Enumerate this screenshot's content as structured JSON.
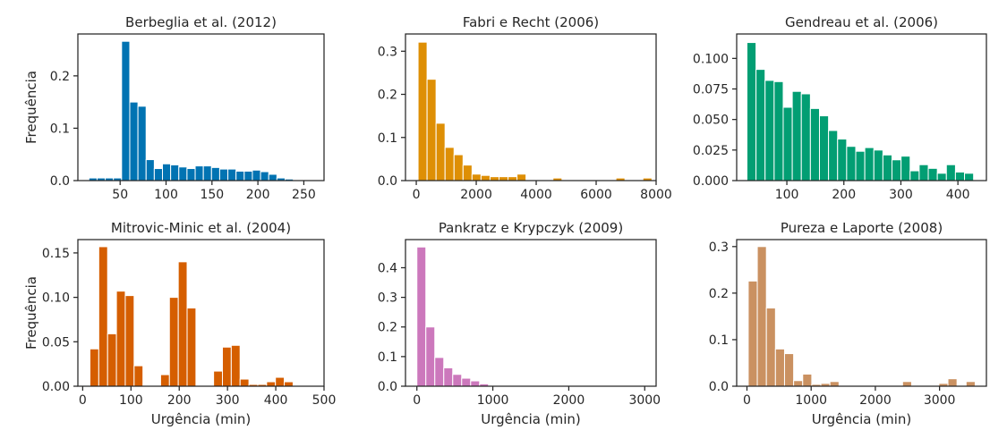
{
  "figure": {
    "background": "#ffffff"
  },
  "chart_data": [
    {
      "type": "bar",
      "title": "Berbeglia et al. (2012)",
      "xlabel": "",
      "ylabel": "Frequência",
      "color": "#0173b2",
      "xlim": [
        4,
        272
      ],
      "ylim": [
        0,
        0.28
      ],
      "xticks": [
        50,
        100,
        150,
        200,
        250
      ],
      "xtick_labels": [
        "50",
        "100",
        "150",
        "200",
        "250"
      ],
      "yticks": [
        0,
        0.1,
        0.2
      ],
      "ytick_labels": [
        "0.0",
        "0.1",
        "0.2"
      ],
      "bin_start": 16,
      "bin_width": 8.9,
      "values": [
        0.005,
        0.005,
        0.005,
        0.005,
        0.266,
        0.15,
        0.142,
        0.04,
        0.023,
        0.032,
        0.03,
        0.026,
        0.023,
        0.028,
        0.028,
        0.025,
        0.022,
        0.022,
        0.018,
        0.018,
        0.02,
        0.017,
        0.012,
        0.005,
        0.003
      ]
    },
    {
      "type": "bar",
      "title": "Fabri e Recht (2006)",
      "xlabel": "",
      "ylabel": "",
      "color": "#de8f05",
      "xlim": [
        -360,
        8000
      ],
      "ylim": [
        0,
        0.34
      ],
      "xticks": [
        0,
        2000,
        4000,
        6000,
        8000
      ],
      "xtick_labels": [
        "0",
        "2000",
        "4000",
        "6000",
        "8000"
      ],
      "yticks": [
        0,
        0.1,
        0.2,
        0.3
      ],
      "ytick_labels": [
        "0.0",
        "0.1",
        "0.2",
        "0.3"
      ],
      "bin_start": 60,
      "bin_width": 300,
      "values": [
        0.321,
        0.235,
        0.133,
        0.077,
        0.06,
        0.036,
        0.015,
        0.012,
        0.009,
        0.009,
        0.009,
        0.015,
        0,
        0,
        0,
        0.006,
        0,
        0,
        0,
        0,
        0,
        0,
        0.006,
        0,
        0,
        0.006
      ]
    },
    {
      "type": "bar",
      "title": "Gendreau et al. (2006)",
      "xlabel": "",
      "ylabel": "",
      "color": "#029e73",
      "xlim": [
        12,
        450
      ],
      "ylim": [
        0,
        0.12
      ],
      "xticks": [
        100,
        200,
        300,
        400
      ],
      "xtick_labels": [
        "100",
        "200",
        "300",
        "400"
      ],
      "yticks": [
        0,
        0.025,
        0.05,
        0.075,
        0.1
      ],
      "ytick_labels": [
        "0.000",
        "0.025",
        "0.050",
        "0.075",
        "0.100"
      ],
      "bin_start": 30,
      "bin_width": 15.9,
      "values": [
        0.113,
        0.091,
        0.082,
        0.081,
        0.06,
        0.073,
        0.071,
        0.059,
        0.053,
        0.041,
        0.034,
        0.028,
        0.024,
        0.027,
        0.025,
        0.021,
        0.017,
        0.02,
        0.008,
        0.013,
        0.01,
        0.006,
        0.013,
        0.007,
        0.006
      ]
    },
    {
      "type": "bar",
      "title": "Mitrovic-Minic et al. (2004)",
      "xlabel": "Urgência (min)",
      "ylabel": "Frequência",
      "color": "#d55e00",
      "xlim": [
        -10,
        500
      ],
      "ylim": [
        0,
        0.165
      ],
      "xticks": [
        0,
        100,
        200,
        300,
        400,
        500
      ],
      "xtick_labels": [
        "0",
        "100",
        "200",
        "300",
        "400",
        "500"
      ],
      "yticks": [
        0,
        0.05,
        0.1,
        0.15
      ],
      "ytick_labels": [
        "0.00",
        "0.05",
        "0.10",
        "0.15"
      ],
      "bin_start": 15,
      "bin_width": 18.3,
      "values": [
        0.042,
        0.157,
        0.059,
        0.107,
        0.102,
        0.023,
        0,
        0,
        0.013,
        0.1,
        0.14,
        0.088,
        0,
        0,
        0.017,
        0.044,
        0.046,
        0.008,
        0.002,
        0.002,
        0.005,
        0.01,
        0.005
      ]
    },
    {
      "type": "bar",
      "title": "Pankratz e Krypczyk (2009)",
      "xlabel": "Urgência (min)",
      "ylabel": "",
      "color": "#cc78bc",
      "xlim": [
        -150,
        3150
      ],
      "ylim": [
        0,
        0.495
      ],
      "xticks": [
        0,
        1000,
        2000,
        3000
      ],
      "xtick_labels": [
        "0",
        "1000",
        "2000",
        "3000"
      ],
      "yticks": [
        0,
        0.1,
        0.2,
        0.3,
        0.4
      ],
      "ytick_labels": [
        "0.0",
        "0.1",
        "0.2",
        "0.3",
        "0.4"
      ],
      "bin_start": 0,
      "bin_width": 118,
      "values": [
        0.47,
        0.2,
        0.097,
        0.062,
        0.04,
        0.027,
        0.018,
        0.008,
        0.003,
        0.002,
        0.001,
        0.001,
        0.001,
        0.001,
        0.001,
        0.001,
        0.001,
        0.001,
        0.001,
        0.001,
        0.001,
        0.001,
        0.001,
        0.001,
        0.001
      ]
    },
    {
      "type": "bar",
      "title": "Pureza e Laporte (2008)",
      "xlabel": "Urgência (min)",
      "ylabel": "",
      "color": "#ca9161",
      "xlim": [
        -160,
        3730
      ],
      "ylim": [
        0,
        0.315
      ],
      "xticks": [
        0,
        1000,
        2000,
        3000
      ],
      "xtick_labels": [
        "0",
        "1000",
        "2000",
        "3000"
      ],
      "yticks": [
        0,
        0.1,
        0.2,
        0.3
      ],
      "ytick_labels": [
        "0.0",
        "0.1",
        "0.2",
        "0.3"
      ],
      "bin_start": 20,
      "bin_width": 141.4,
      "values": [
        0.226,
        0.3,
        0.168,
        0.08,
        0.07,
        0.012,
        0.026,
        0.004,
        0.006,
        0.01,
        0,
        0,
        0,
        0,
        0,
        0,
        0,
        0.01,
        0,
        0,
        0,
        0.006,
        0.016,
        0,
        0.01
      ]
    }
  ]
}
